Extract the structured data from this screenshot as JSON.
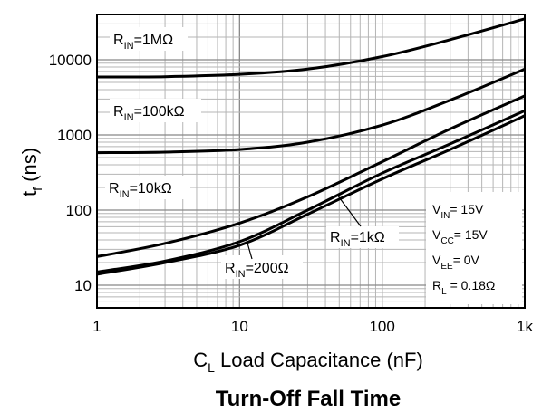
{
  "chart_data": {
    "type": "line",
    "xscale": "log",
    "yscale": "log",
    "xlim": [
      1,
      1000
    ],
    "ylim": [
      5,
      40000
    ],
    "grid": true,
    "x_ticks": [
      {
        "value": 1,
        "label": "1"
      },
      {
        "value": 10,
        "label": "10"
      },
      {
        "value": 100,
        "label": "100"
      },
      {
        "value": 1000,
        "label": "1k"
      }
    ],
    "y_ticks": [
      {
        "value": 10,
        "label": "10"
      },
      {
        "value": 100,
        "label": "100"
      },
      {
        "value": 1000,
        "label": "1000"
      },
      {
        "value": 10000,
        "label": "10000"
      }
    ],
    "xlabel": {
      "main": "C",
      "sub": "L",
      "rest": " Load Capacitance (nF)"
    },
    "ylabel": {
      "main": "t",
      "sub": "f",
      "rest": " (ns)"
    },
    "caption": "Turn-Off Fall Time",
    "series": [
      {
        "name": "R_IN=1MΩ",
        "label": {
          "main": "R",
          "sub": "IN",
          "rest": "=1MΩ"
        },
        "x": [
          1,
          3,
          10,
          30,
          100,
          300,
          1000
        ],
        "y": [
          5900,
          5950,
          6400,
          7500,
          11000,
          18500,
          35000
        ]
      },
      {
        "name": "R_IN=100kΩ",
        "label": {
          "main": "R",
          "sub": "IN",
          "rest": "=100kΩ"
        },
        "x": [
          1,
          3,
          10,
          30,
          100,
          300,
          1000
        ],
        "y": [
          580,
          590,
          640,
          800,
          1350,
          2900,
          7500
        ]
      },
      {
        "name": "R_IN=10kΩ",
        "label": {
          "main": "R",
          "sub": "IN",
          "rest": "=10kΩ"
        },
        "x": [
          1,
          3,
          10,
          30,
          100,
          300,
          1000
        ],
        "y": [
          24,
          36,
          67,
          150,
          440,
          1200,
          3300
        ]
      },
      {
        "name": "R_IN=1kΩ",
        "label": {
          "main": "R",
          "sub": "IN",
          "rest": "=1kΩ"
        },
        "x": [
          1,
          3,
          10,
          30,
          100,
          300,
          1000
        ],
        "y": [
          15,
          21,
          38,
          100,
          310,
          760,
          2100
        ]
      },
      {
        "name": "R_IN=200Ω",
        "label": {
          "main": "R",
          "sub": "IN",
          "rest": "=200Ω"
        },
        "x": [
          1,
          3,
          10,
          30,
          100,
          300,
          1000
        ],
        "y": [
          14,
          20,
          34,
          88,
          260,
          640,
          1800
        ]
      }
    ],
    "conditions": [
      {
        "main": "V",
        "sub": "IN",
        "rest": "= 15V"
      },
      {
        "main": "V",
        "sub": "CC",
        "rest": "= 15V"
      },
      {
        "main": "V",
        "sub": "EE",
        "rest": "= 0V"
      },
      {
        "main": "R",
        "sub": "L",
        "rest": " = 0.18Ω"
      }
    ]
  }
}
